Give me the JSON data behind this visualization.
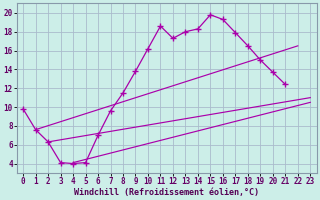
{
  "bg_color": "#cceee8",
  "grid_color": "#aabbcc",
  "line_color": "#aa00aa",
  "xlim": [
    -0.5,
    23.5
  ],
  "ylim": [
    3.0,
    21.0
  ],
  "yticks": [
    4,
    6,
    8,
    10,
    12,
    14,
    16,
    18,
    20
  ],
  "xticks": [
    0,
    1,
    2,
    3,
    4,
    5,
    6,
    7,
    8,
    9,
    10,
    11,
    12,
    13,
    14,
    15,
    16,
    17,
    18,
    19,
    20,
    21,
    22,
    23
  ],
  "xlabel": "Windchill (Refroidissement éolien,°C)",
  "main_x": [
    0,
    1,
    2,
    3,
    4,
    5,
    6,
    7,
    8,
    9,
    10,
    11,
    12,
    13,
    14,
    15,
    16,
    17,
    18,
    19,
    20,
    21
  ],
  "main_y": [
    9.8,
    7.6,
    6.3,
    4.1,
    4.0,
    4.1,
    7.0,
    9.6,
    11.5,
    13.8,
    16.2,
    18.6,
    17.3,
    18.0,
    18.3,
    19.8,
    19.3,
    17.9,
    16.5,
    15.0,
    13.7,
    12.4
  ],
  "line1_x": [
    1,
    22
  ],
  "line1_y": [
    7.6,
    16.5
  ],
  "line2_x": [
    2,
    23
  ],
  "line2_y": [
    6.3,
    11.0
  ],
  "line3_x": [
    4,
    23
  ],
  "line3_y": [
    4.1,
    10.5
  ]
}
